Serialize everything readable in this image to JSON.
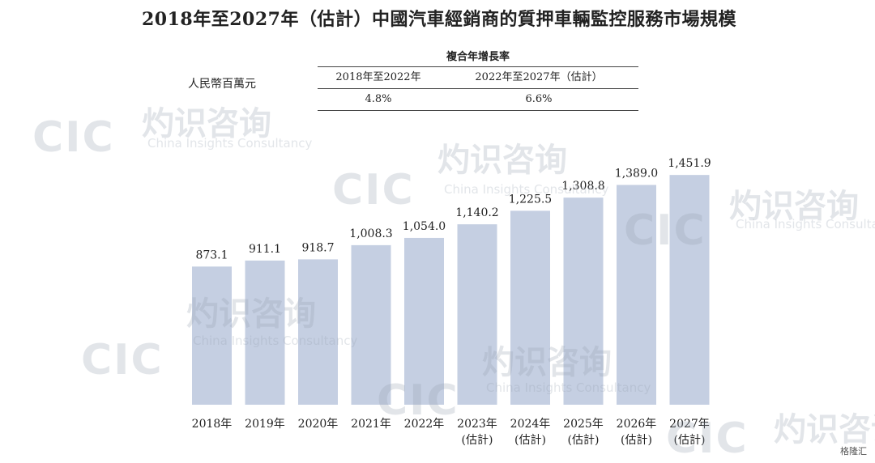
{
  "title": "2018年至2027年（估計）中國汽車經銷商的質押車輛監控服務市場規模",
  "cagr_table": {
    "header": "複合年增長率",
    "periods": [
      "2018年至2022年",
      "2022年至2027年（估計）"
    ],
    "values": [
      "4.8%",
      "6.6%"
    ]
  },
  "chart_data": {
    "type": "bar",
    "ylabel": "人民幣百萬元",
    "categories": [
      "2018年",
      "2019年",
      "2020年",
      "2021年",
      "2022年",
      "2023年",
      "2024年",
      "2025年",
      "2026年",
      "2027年"
    ],
    "category_notes": [
      "",
      "",
      "",
      "",
      "",
      "(估計)",
      "(估計)",
      "(估計)",
      "(估計)",
      "(估計)"
    ],
    "values": [
      873.1,
      911.1,
      918.7,
      1008.3,
      1054.0,
      1140.2,
      1225.5,
      1308.8,
      1389.0,
      1451.9
    ],
    "value_labels": [
      "873.1",
      "911.1",
      "918.7",
      "1,008.3",
      "1,054.0",
      "1,140.2",
      "1,225.5",
      "1,308.8",
      "1,389.0",
      "1,451.9"
    ],
    "bar_color": "#c5cfe2"
  },
  "watermark": {
    "logo": "CIC",
    "cn": "灼识咨询",
    "en": "China Insights Consultancy"
  },
  "badge": "格隆汇"
}
